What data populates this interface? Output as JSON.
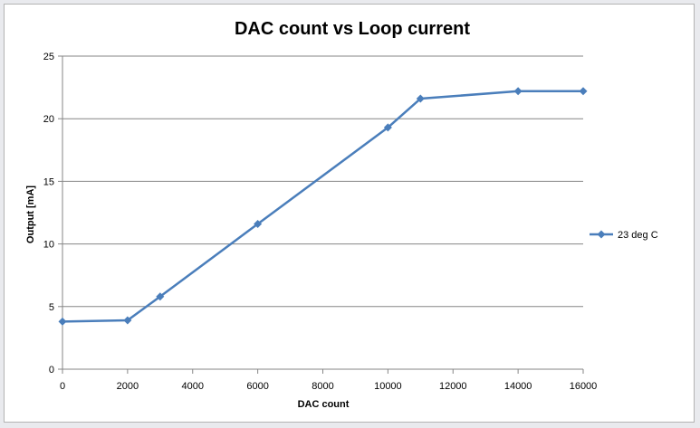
{
  "chart_data": {
    "type": "line",
    "title": "DAC count vs Loop current",
    "xlabel": "DAC count",
    "ylabel": "Output [mA]",
    "xlim": [
      0,
      16000
    ],
    "ylim": [
      0,
      25
    ],
    "x_ticks": [
      0,
      2000,
      4000,
      6000,
      8000,
      10000,
      12000,
      14000,
      16000
    ],
    "y_ticks": [
      0,
      5,
      10,
      15,
      20,
      25
    ],
    "grid": "horizontal",
    "legend_position": "right",
    "series": [
      {
        "name": "23 deg C",
        "color": "#4a7ebb",
        "marker": "diamond",
        "x": [
          0,
          2000,
          3000,
          6000,
          10000,
          11000,
          14000,
          16000
        ],
        "y": [
          3.8,
          3.9,
          5.8,
          11.6,
          19.3,
          21.6,
          22.2,
          22.2
        ]
      }
    ]
  }
}
